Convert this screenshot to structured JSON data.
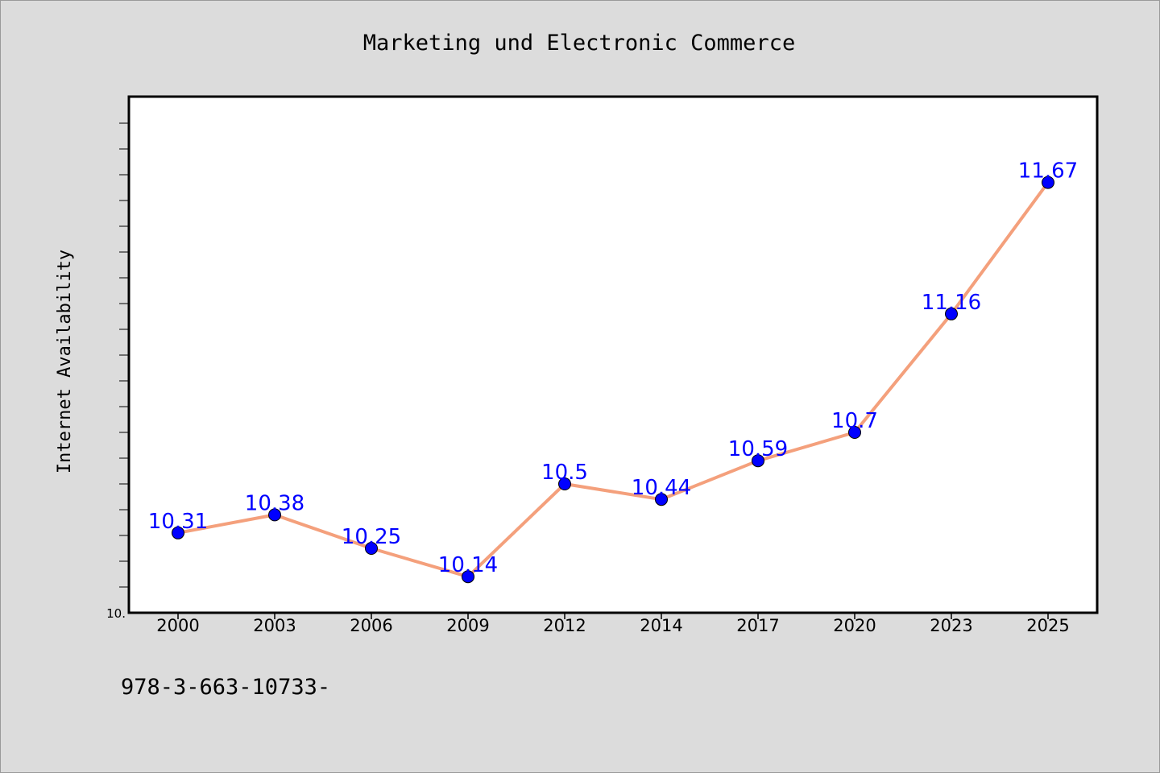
{
  "chart_data": {
    "type": "line",
    "title": "Marketing und Electronic Commerce",
    "xlabel": "",
    "ylabel": "Internet Availability",
    "categories": [
      "2000",
      "2003",
      "2006",
      "2009",
      "2012",
      "2014",
      "2017",
      "2020",
      "2023",
      "2025"
    ],
    "series": [
      {
        "values": [
          10.31,
          10.38,
          10.25,
          10.14,
          10.5,
          10.44,
          10.59,
          10.7,
          11.16,
          11.67
        ],
        "labels": [
          "10.31",
          "10.38",
          "10.25",
          "10.14",
          "10.5",
          "10.44",
          "10.59",
          "10.7",
          "11.16",
          "11.67"
        ],
        "line_color": "#f4a07c",
        "marker_color": "#0000ff"
      }
    ],
    "ylim": [
      10.0,
      12.0
    ],
    "y_tick_labels": [
      "10."
    ],
    "grid": false,
    "legend": "none"
  },
  "footer_text": "978-3-663-10733-"
}
